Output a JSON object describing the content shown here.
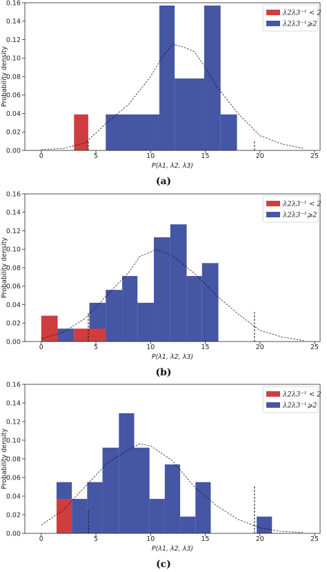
{
  "colors": {
    "red": "#d03d3f",
    "blue": "#4556a5",
    "axis": "#222222"
  },
  "chart_data": [
    {
      "type": "bar",
      "caption": "(a)",
      "xlabel": "P(λ1, λ2, λ3)",
      "ylabel": "Probability density",
      "xlim": [
        -1.5,
        25.5
      ],
      "ylim": [
        0,
        0.16
      ],
      "xticks": [
        "0",
        "5",
        "10",
        "15",
        "20",
        "25"
      ],
      "yticks": [
        "0.00",
        "0.02",
        "0.04",
        "0.06",
        "0.08",
        "0.10",
        "0.12",
        "0.14",
        "0.16"
      ],
      "legend": [
        "λ2λ3⁻¹ < 2",
        "λ2λ3⁻¹⩾2"
      ],
      "legend_position": "top-right",
      "series": [
        {
          "name": "λ2λ3⁻¹ < 2",
          "color": "red",
          "bins": [
            {
              "x0": 3.0,
              "x1": 4.3,
              "y": 0.039
            }
          ]
        },
        {
          "name": "λ2λ3⁻¹⩾2",
          "color": "blue",
          "bins": [
            {
              "x0": 5.9,
              "x1": 10.8,
              "y": 0.039
            },
            {
              "x0": 10.8,
              "x1": 12.2,
              "y": 0.157
            },
            {
              "x0": 12.2,
              "x1": 14.9,
              "y": 0.078
            },
            {
              "x0": 14.9,
              "x1": 16.4,
              "y": 0.157
            },
            {
              "x0": 16.4,
              "x1": 17.9,
              "y": 0.039
            }
          ]
        }
      ],
      "curve": [
        [
          0,
          0.001
        ],
        [
          2,
          0.002
        ],
        [
          4,
          0.008
        ],
        [
          6,
          0.03
        ],
        [
          8,
          0.05
        ],
        [
          10,
          0.08
        ],
        [
          11,
          0.1
        ],
        [
          12,
          0.115
        ],
        [
          13,
          0.112
        ],
        [
          14,
          0.107
        ],
        [
          15,
          0.09
        ],
        [
          16,
          0.07
        ],
        [
          18,
          0.04
        ],
        [
          20,
          0.016
        ],
        [
          22,
          0.007
        ],
        [
          24,
          0.002
        ]
      ],
      "vlines": [
        {
          "x": 4.3,
          "y": 0.01
        },
        {
          "x": 19.5,
          "y": 0.011
        }
      ]
    },
    {
      "type": "bar",
      "caption": "(b)",
      "xlabel": "P(λ1, λ2, λ3)",
      "ylabel": "Probability density",
      "xlim": [
        -1.5,
        25.5
      ],
      "ylim": [
        0,
        0.16
      ],
      "xticks": [
        "0",
        "5",
        "10",
        "15",
        "20",
        "25"
      ],
      "yticks": [
        "0.00",
        "0.02",
        "0.04",
        "0.06",
        "0.08",
        "0.10",
        "0.12",
        "0.14",
        "0.16"
      ],
      "legend": [
        "λ2λ3⁻¹ < 2",
        "λ2λ3⁻¹⩾2"
      ],
      "legend_position": "top-right",
      "series": [
        {
          "name": "λ2λ3⁻¹ < 2",
          "color": "red",
          "bins": [
            {
              "x0": 0.0,
              "x1": 1.5,
              "y": 0.028
            },
            {
              "x0": 3.0,
              "x1": 5.9,
              "y": 0.014
            }
          ]
        },
        {
          "name": "λ2λ3⁻¹⩾2",
          "color": "blue",
          "bins": [
            {
              "x0": 1.5,
              "x1": 3.0,
              "y": 0.014
            },
            {
              "x0": 4.4,
              "x1": 5.9,
              "y": 0.042
            },
            {
              "x0": 5.9,
              "x1": 7.4,
              "y": 0.056
            },
            {
              "x0": 7.4,
              "x1": 8.8,
              "y": 0.071
            },
            {
              "x0": 8.8,
              "x1": 10.3,
              "y": 0.042
            },
            {
              "x0": 10.3,
              "x1": 11.8,
              "y": 0.113
            },
            {
              "x0": 11.8,
              "x1": 13.3,
              "y": 0.127
            },
            {
              "x0": 13.3,
              "x1": 14.7,
              "y": 0.071
            },
            {
              "x0": 14.7,
              "x1": 16.2,
              "y": 0.085
            }
          ]
        }
      ],
      "curve": [
        [
          0,
          0.003
        ],
        [
          2,
          0.01
        ],
        [
          4,
          0.025
        ],
        [
          6,
          0.05
        ],
        [
          8,
          0.075
        ],
        [
          9,
          0.092
        ],
        [
          10,
          0.097
        ],
        [
          10.5,
          0.1
        ],
        [
          12,
          0.093
        ],
        [
          14,
          0.074
        ],
        [
          16,
          0.05
        ],
        [
          18,
          0.03
        ],
        [
          20,
          0.012
        ],
        [
          22,
          0.005
        ],
        [
          24,
          0.001
        ]
      ],
      "vlines": [
        {
          "x": 4.3,
          "y": 0.031
        },
        {
          "x": 19.5,
          "y": 0.032
        }
      ]
    },
    {
      "type": "bar",
      "caption": "(c)",
      "xlabel": "P(λ1, λ2, λ3)",
      "ylabel": "Probability density",
      "xlim": [
        -1.5,
        25.5
      ],
      "ylim": [
        0,
        0.16
      ],
      "xticks": [
        "0",
        "5",
        "10",
        "15",
        "20",
        "25"
      ],
      "yticks": [
        "0.00",
        "0.02",
        "0.04",
        "0.06",
        "0.08",
        "0.10",
        "0.12",
        "0.14",
        "0.16"
      ],
      "legend": [
        "λ2λ3⁻¹ < 2",
        "λ2λ3⁻¹⩾2"
      ],
      "legend_position": "top-right",
      "series": [
        {
          "name": "λ2λ3⁻¹ < 2",
          "color": "red",
          "bins": [
            {
              "x0": 1.4,
              "x1": 2.8,
              "y": 0.037
            }
          ]
        },
        {
          "name": "λ2λ3⁻¹⩾2",
          "color": "blue",
          "bins": [
            {
              "x0": 1.4,
              "x1": 2.8,
              "y": 0.055,
              "stack": 0.037
            },
            {
              "x0": 2.8,
              "x1": 4.2,
              "y": 0.037
            },
            {
              "x0": 4.2,
              "x1": 5.6,
              "y": 0.055
            },
            {
              "x0": 5.6,
              "x1": 7.1,
              "y": 0.092
            },
            {
              "x0": 7.1,
              "x1": 8.5,
              "y": 0.129
            },
            {
              "x0": 8.5,
              "x1": 9.9,
              "y": 0.092
            },
            {
              "x0": 9.9,
              "x1": 11.3,
              "y": 0.037
            },
            {
              "x0": 11.3,
              "x1": 12.7,
              "y": 0.074
            },
            {
              "x0": 12.7,
              "x1": 14.1,
              "y": 0.018
            },
            {
              "x0": 14.1,
              "x1": 15.5,
              "y": 0.055
            },
            {
              "x0": 19.7,
              "x1": 21.1,
              "y": 0.018
            }
          ]
        }
      ],
      "curve": [
        [
          0,
          0.009
        ],
        [
          2,
          0.025
        ],
        [
          4,
          0.05
        ],
        [
          6,
          0.075
        ],
        [
          8,
          0.09
        ],
        [
          9,
          0.096
        ],
        [
          10,
          0.094
        ],
        [
          12,
          0.078
        ],
        [
          14,
          0.05
        ],
        [
          16,
          0.03
        ],
        [
          18,
          0.015
        ],
        [
          20,
          0.006
        ],
        [
          22,
          0.002
        ],
        [
          24,
          0.001
        ]
      ],
      "vlines": [
        {
          "x": 4.3,
          "y": 0.026
        },
        {
          "x": 19.5,
          "y": 0.052
        }
      ]
    }
  ]
}
